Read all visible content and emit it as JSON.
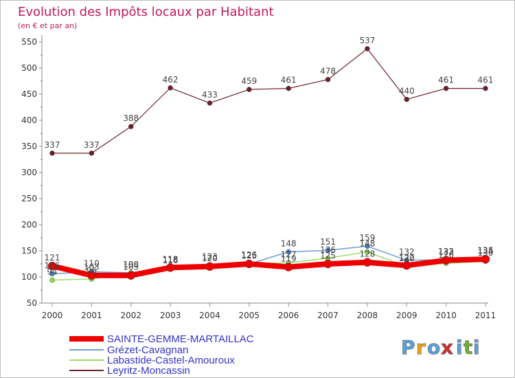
{
  "chart_data": {
    "type": "line",
    "title": "Evolution des Impôts locaux par Habitant",
    "subtitle": "(en € et par an)",
    "xlabel": "",
    "ylabel": "",
    "categories": [
      "2000",
      "2001",
      "2002",
      "2003",
      "2004",
      "2005",
      "2006",
      "2007",
      "2008",
      "2009",
      "2010",
      "2011"
    ],
    "ylim": [
      50,
      550
    ],
    "yticks": [
      "50",
      "100",
      "150",
      "200",
      "250",
      "300",
      "350",
      "400",
      "450",
      "500",
      "550"
    ],
    "grid": false,
    "legend_position": "bottom-left",
    "series": [
      {
        "name": "Leyritz-Moncassin",
        "color": "#6b1f2a",
        "values": [
          337,
          337,
          388,
          462,
          433,
          459,
          461,
          478,
          537,
          440,
          461,
          461
        ],
        "labels": [
          "337",
          "337",
          "388",
          "462",
          "433",
          "459",
          "461",
          "478",
          "537",
          "440",
          "461",
          "461"
        ]
      },
      {
        "name": "Grézet-Cavagnan",
        "color": "#6f9fd0",
        "values": [
          106,
          110,
          108,
          118,
          123,
          125,
          148,
          151,
          159,
          132,
          133,
          135
        ],
        "labels": [
          "106",
          "110",
          "108",
          "118",
          "123",
          "125",
          "148",
          "151",
          "159",
          "132",
          "133",
          "135"
        ]
      },
      {
        "name": "Labastide-Castel-Amouroux",
        "color": "#99dd66",
        "values": [
          94,
          96,
          108,
          116,
          120,
          126,
          127,
          136,
          148,
          120,
          126,
          130
        ],
        "labels": [
          "94",
          "96",
          "108",
          "116",
          "120",
          "126",
          "127",
          "136",
          "148",
          "120",
          "126",
          "130"
        ]
      },
      {
        "name": "SAINTE-GEMME-MARTAILLAC",
        "color": "#ee0000",
        "values": [
          121,
          103,
          103,
          118,
          120,
          125,
          119,
          125,
          128,
          122,
          132,
          134
        ],
        "labels": [
          "121",
          "103",
          "103",
          "118",
          "120",
          "125",
          "119",
          "125",
          "128",
          "122",
          "132",
          "134"
        ]
      }
    ],
    "legend": [
      "SAINTE-GEMME-MARTAILLAC",
      "Grézet-Cavagnan",
      "Labastide-Castel-Amouroux",
      "Leyritz-Moncassin"
    ]
  },
  "logo": {
    "text": "Proxiti",
    "letters": [
      "P",
      "r",
      "o",
      "x",
      "i",
      "t",
      "i"
    ],
    "colors": [
      "#5aa0dc",
      "#f0a020",
      "#5aa0dc",
      "#d03030",
      "#5aa0dc",
      "#70b030",
      "#5aa0dc"
    ]
  },
  "colors": {
    "title": "#c2185b",
    "axis": "#888888",
    "tick_text": "#333333",
    "label_text": "#444444",
    "legend_text": "#3333cc",
    "minor_tick": "#c0392b"
  }
}
